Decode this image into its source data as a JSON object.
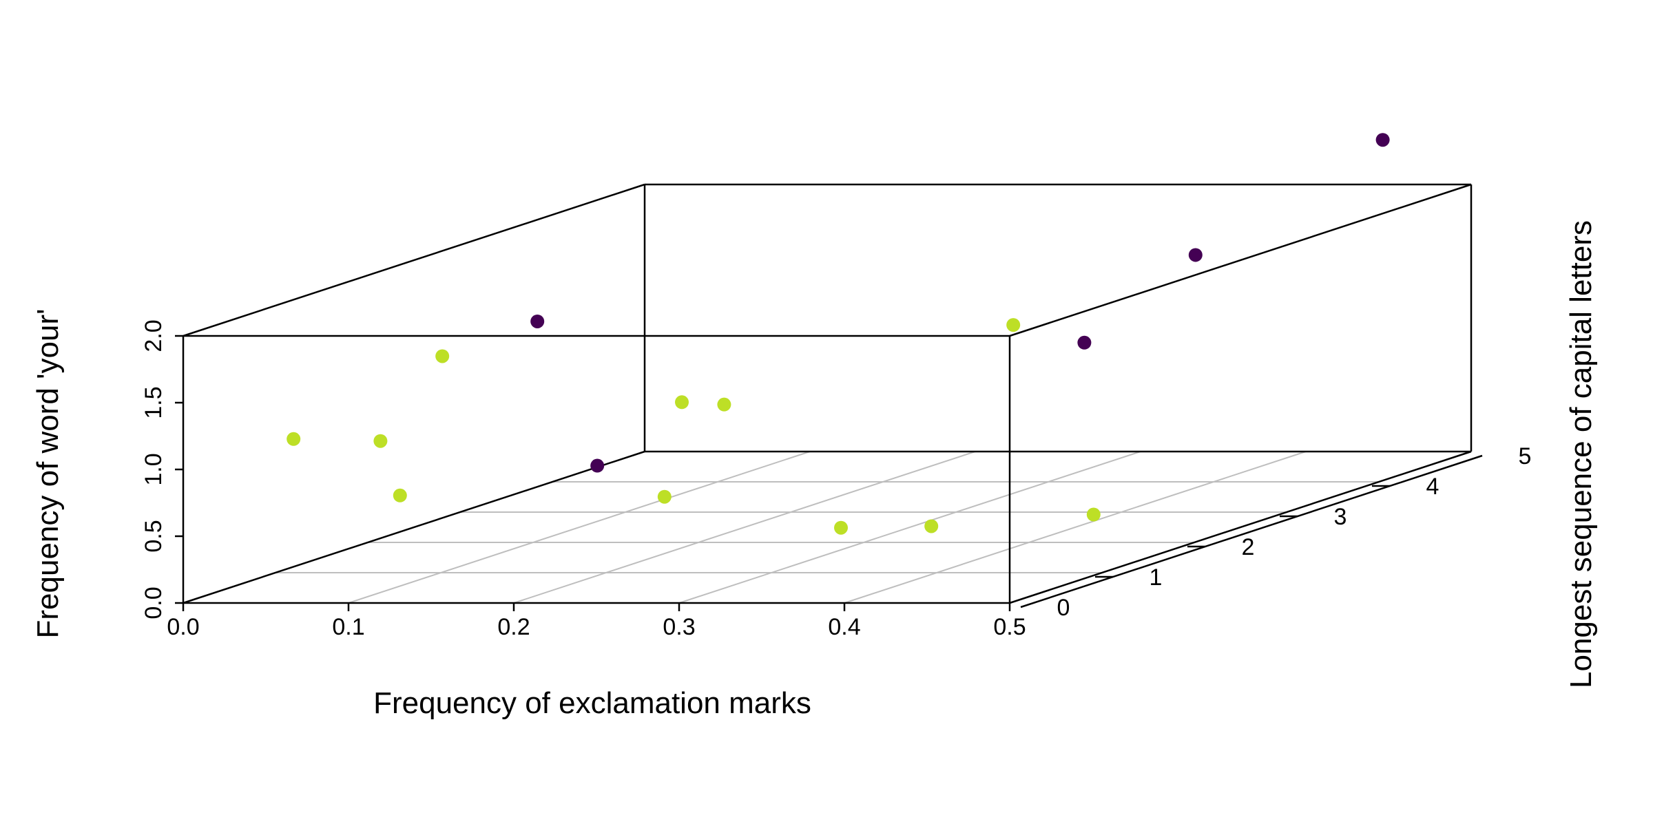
{
  "chart_data": {
    "type": "scatter",
    "subtype": "3d-scatter",
    "title": "",
    "xlabel": "Frequency of exclamation marks",
    "ylabel": "Longest sequence of capital letters",
    "zlabel": "Frequency of word 'your'",
    "xlim": [
      0,
      0.5
    ],
    "ylim": [
      0,
      5
    ],
    "zlim": [
      0,
      2
    ],
    "x_ticks": [
      "0.0",
      "0.1",
      "0.2",
      "0.3",
      "0.4",
      "0.5"
    ],
    "y_ticks": [
      "0",
      "1",
      "2",
      "3",
      "4",
      "5"
    ],
    "z_ticks": [
      "0.0",
      "0.5",
      "1.0",
      "1.5",
      "2.0"
    ],
    "grid": true,
    "legend": "none",
    "colors": {
      "class_a": "#440154",
      "class_b": "#bddf26"
    },
    "points": [
      {
        "x": 0.03,
        "y": 3.3,
        "z": 1.36,
        "class": "class_a"
      },
      {
        "x": 0.14,
        "y": 0.3,
        "z": 1.78,
        "class": "class_b"
      },
      {
        "x": 0.19,
        "y": 2.0,
        "z": 1.05,
        "class": "class_b"
      },
      {
        "x": 0.21,
        "y": 2.1,
        "z": 1.01,
        "class": "class_b"
      },
      {
        "x": 0.29,
        "y": 3.8,
        "z": 1.22,
        "class": "class_b"
      },
      {
        "x": 0.35,
        "y": 4.7,
        "z": 1.54,
        "class": "class_a"
      },
      {
        "x": 0.4,
        "y": 2.6,
        "z": 1.36,
        "class": "class_a"
      },
      {
        "x": 0.05,
        "y": 0.3,
        "z": 1.16,
        "class": "class_b"
      },
      {
        "x": 0.12,
        "y": 0.2,
        "z": 0.76,
        "class": "class_b"
      },
      {
        "x": 0.03,
        "y": 1.6,
        "z": 0.85,
        "class": "class_b"
      },
      {
        "x": 0.28,
        "y": 0.2,
        "z": 0.75,
        "class": "class_b"
      },
      {
        "x": 0.15,
        "y": 1.8,
        "z": 0.62,
        "class": "class_a"
      },
      {
        "x": 0.48,
        "y": 4.4,
        "z": 2.47,
        "class": "class_a"
      },
      {
        "x": 0.37,
        "y": 0.5,
        "z": 0.45,
        "class": "class_b"
      },
      {
        "x": 0.38,
        "y": 1.3,
        "z": 0.28,
        "class": "class_b"
      },
      {
        "x": 0.4,
        "y": 2.7,
        "z": 0.05,
        "class": "class_b"
      }
    ]
  }
}
